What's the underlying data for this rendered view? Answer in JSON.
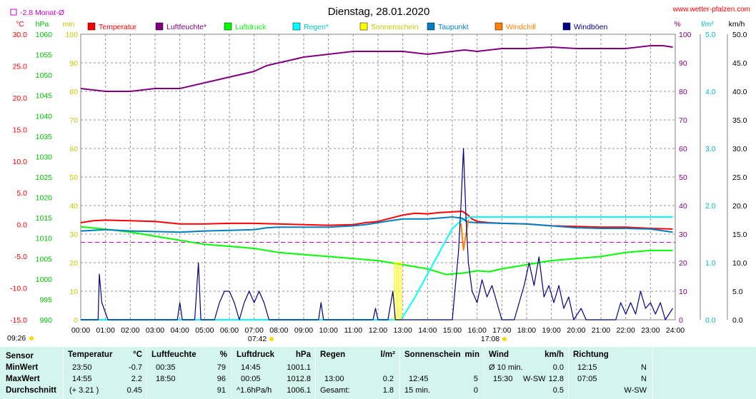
{
  "header": {
    "title": "Dienstag, 28.01.2020",
    "source": "www.wetter-pfalzen.com",
    "monat_label": "-2.8 Monat-Ø"
  },
  "axis_units": {
    "celsius": "°C",
    "hpa": "hPa",
    "min": "min",
    "percent": "%",
    "lm2": "l/m²",
    "kmh": "km/h"
  },
  "colors": {
    "temperatur": "#ff0000",
    "luftfeuchte": "#800080",
    "luftdruck": "#00ff00",
    "regen": "#00ffff",
    "sonnenschein": "#ffff00",
    "taupunkt": "#0080c0",
    "windchill": "#ff8000",
    "windboeen": "#000080",
    "monat": "#cc00cc",
    "summary_bg": "#d4f5ec"
  },
  "markers": {
    "sunrise": "07:42",
    "sunset": "17:08",
    "update": "09:26"
  },
  "chart_data": {
    "type": "line",
    "title": "Dienstag, 28.01.2020",
    "x_ticks": [
      "00:00",
      "01:00",
      "02:00",
      "03:00",
      "04:00",
      "05:00",
      "06:00",
      "07:00",
      "08:00",
      "09:00",
      "10:00",
      "11:00",
      "12:00",
      "13:00",
      "14:00",
      "15:00",
      "16:00",
      "17:00",
      "18:00",
      "19:00",
      "20:00",
      "21:00",
      "22:00",
      "23:00",
      "24:00"
    ],
    "x_range_hours": [
      0,
      24
    ],
    "grid": true,
    "legend_position": "top",
    "axes": {
      "temp_c": {
        "range": [
          -15,
          30
        ],
        "ticks": [
          "30.0",
          "25.0",
          "20.0",
          "15.0",
          "10.0",
          "5.0",
          "0.0",
          "-5.0",
          "-10.0",
          "-15.0"
        ]
      },
      "pressure_hpa": {
        "range": [
          990,
          1060
        ],
        "ticks": [
          "1060",
          "1055",
          "1050",
          "1045",
          "1040",
          "1035",
          "1030",
          "1025",
          "1020",
          "1015",
          "1010",
          "1005",
          "1000",
          "995",
          "990"
        ]
      },
      "sun_min": {
        "range": [
          0,
          100
        ],
        "ticks": [
          "100",
          "90",
          "80",
          "70",
          "60",
          "50",
          "40",
          "30",
          "20",
          "10",
          "0"
        ]
      },
      "humidity_pct": {
        "range": [
          0,
          100
        ],
        "ticks": [
          "100",
          "90",
          "80",
          "70",
          "60",
          "50",
          "40",
          "30",
          "20",
          "10",
          "0"
        ]
      },
      "rain_lm2": {
        "range": [
          0,
          5
        ],
        "ticks": [
          "5.0",
          "4.0",
          "3.0",
          "2.0",
          "1.0",
          "0.0"
        ]
      },
      "wind_kmh": {
        "range": [
          0,
          50
        ],
        "ticks": [
          "50.0",
          "45.0",
          "40.0",
          "35.0",
          "30.0",
          "25.0",
          "20.0",
          "15.0",
          "10.0",
          "5.0",
          "0.0"
        ]
      }
    },
    "monat_avg_c": -2.8,
    "series": [
      {
        "name": "Temperatur",
        "axis": "temp_c",
        "color": "#ff0000",
        "points": [
          [
            0,
            0.3
          ],
          [
            0.5,
            0.6
          ],
          [
            1,
            0.7
          ],
          [
            2,
            0.6
          ],
          [
            3,
            0.5
          ],
          [
            3.5,
            0.3
          ],
          [
            4,
            0.1
          ],
          [
            5,
            0.1
          ],
          [
            6,
            0.2
          ],
          [
            7,
            0.2
          ],
          [
            8,
            0.1
          ],
          [
            9,
            0.0
          ],
          [
            10,
            -0.1
          ],
          [
            11,
            0.0
          ],
          [
            11.5,
            0.3
          ],
          [
            12,
            0.5
          ],
          [
            12.5,
            1.0
          ],
          [
            13,
            1.5
          ],
          [
            13.5,
            1.8
          ],
          [
            14,
            1.7
          ],
          [
            14.5,
            1.9
          ],
          [
            15,
            2.0
          ],
          [
            15.4,
            2.1
          ],
          [
            15.6,
            1.6
          ],
          [
            15.8,
            0.9
          ],
          [
            16,
            0.5
          ],
          [
            16.5,
            0.3
          ],
          [
            17,
            0.2
          ],
          [
            18,
            0.1
          ],
          [
            19,
            -0.2
          ],
          [
            20,
            -0.3
          ],
          [
            21,
            -0.4
          ],
          [
            22,
            -0.4
          ],
          [
            23,
            -0.6
          ],
          [
            23.9,
            -0.7
          ]
        ]
      },
      {
        "name": "Luftfeuchte*",
        "axis": "humidity_pct",
        "color": "#800080",
        "points": [
          [
            0,
            81
          ],
          [
            0.5,
            80.5
          ],
          [
            1,
            80
          ],
          [
            2,
            80
          ],
          [
            2.5,
            80.5
          ],
          [
            3,
            81
          ],
          [
            4,
            81
          ],
          [
            5,
            83
          ],
          [
            5.5,
            84
          ],
          [
            6,
            85
          ],
          [
            7,
            87
          ],
          [
            7.5,
            89
          ],
          [
            8,
            90
          ],
          [
            9,
            92
          ],
          [
            10,
            93
          ],
          [
            11,
            94
          ],
          [
            12,
            94
          ],
          [
            13,
            94
          ],
          [
            14,
            93
          ],
          [
            15,
            94
          ],
          [
            15.5,
            94.5
          ],
          [
            16,
            94
          ],
          [
            17,
            95
          ],
          [
            18,
            95
          ],
          [
            19,
            95.5
          ],
          [
            20,
            95
          ],
          [
            21,
            95
          ],
          [
            22,
            95
          ],
          [
            23,
            96
          ],
          [
            23.5,
            96
          ],
          [
            23.9,
            95.5
          ]
        ]
      },
      {
        "name": "Luftdruck",
        "axis": "pressure_hpa",
        "color": "#00ff00",
        "points": [
          [
            0,
            1012.8
          ],
          [
            1,
            1012.2
          ],
          [
            2,
            1011.5
          ],
          [
            3,
            1010.5
          ],
          [
            4,
            1009.5
          ],
          [
            5,
            1008.5
          ],
          [
            6,
            1008
          ],
          [
            7,
            1007.5
          ],
          [
            8,
            1006.5
          ],
          [
            9,
            1006
          ],
          [
            10,
            1005.5
          ],
          [
            11,
            1005
          ],
          [
            12,
            1004.5
          ],
          [
            13,
            1003.5
          ],
          [
            14,
            1002.5
          ],
          [
            14.75,
            1001.1
          ],
          [
            15.5,
            1001.5
          ],
          [
            16,
            1002
          ],
          [
            16.5,
            1001.8
          ],
          [
            17,
            1002.5
          ],
          [
            18,
            1003.5
          ],
          [
            19,
            1004.5
          ],
          [
            20,
            1005
          ],
          [
            21,
            1005.5
          ],
          [
            22,
            1006.5
          ],
          [
            23,
            1007
          ],
          [
            23.9,
            1007
          ]
        ]
      },
      {
        "name": "Regen*",
        "axis": "rain_lm2",
        "color": "#00ffff",
        "points": [
          [
            0,
            0
          ],
          [
            12.9,
            0
          ],
          [
            13,
            0.05
          ],
          [
            13.5,
            0.4
          ],
          [
            14,
            0.8
          ],
          [
            14.5,
            1.2
          ],
          [
            15,
            1.6
          ],
          [
            15.4,
            1.75
          ],
          [
            15.7,
            1.8
          ],
          [
            16,
            1.8
          ],
          [
            23.9,
            1.8
          ]
        ]
      },
      {
        "name": "Sonnenschein",
        "axis": "sun_min",
        "color": "#ffff00",
        "points": [
          [
            12.75,
            5
          ],
          [
            12.85,
            5
          ]
        ]
      },
      {
        "name": "Taupunkt",
        "axis": "temp_c",
        "color": "#0080c0",
        "points": [
          [
            0,
            -1.0
          ],
          [
            1,
            -0.8
          ],
          [
            2,
            -1.0
          ],
          [
            3,
            -1.1
          ],
          [
            4,
            -1.2
          ],
          [
            5,
            -1.0
          ],
          [
            6,
            -0.9
          ],
          [
            7,
            -0.8
          ],
          [
            7.5,
            -0.5
          ],
          [
            8,
            -0.4
          ],
          [
            9,
            -0.4
          ],
          [
            10,
            -0.4
          ],
          [
            11,
            -0.2
          ],
          [
            11.5,
            0.0
          ],
          [
            12,
            0.3
          ],
          [
            12.5,
            0.6
          ],
          [
            13,
            0.9
          ],
          [
            14,
            0.9
          ],
          [
            15,
            1.2
          ],
          [
            15.4,
            1.0
          ],
          [
            15.6,
            0.4
          ],
          [
            16,
            0.3
          ],
          [
            17,
            0.2
          ],
          [
            18,
            0.1
          ],
          [
            19,
            -0.2
          ],
          [
            20,
            -0.5
          ],
          [
            21,
            -0.6
          ],
          [
            22,
            -0.6
          ],
          [
            23,
            -0.7
          ],
          [
            23.9,
            -1.2
          ]
        ]
      },
      {
        "name": "Windchill",
        "axis": "temp_c",
        "color": "#ff8000",
        "points": [
          [
            15.35,
            0.2
          ],
          [
            15.45,
            -4.0
          ],
          [
            15.55,
            -1.5
          ],
          [
            15.65,
            0.8
          ]
        ]
      },
      {
        "name": "Windböen",
        "axis": "wind_kmh",
        "color": "#000080",
        "points": [
          [
            0,
            0
          ],
          [
            0.7,
            0
          ],
          [
            0.75,
            8
          ],
          [
            0.85,
            3
          ],
          [
            1.1,
            0
          ],
          [
            3.9,
            0
          ],
          [
            4,
            3
          ],
          [
            4.1,
            0
          ],
          [
            4.6,
            0
          ],
          [
            4.75,
            10
          ],
          [
            4.85,
            0
          ],
          [
            5.4,
            0
          ],
          [
            5.6,
            3
          ],
          [
            5.8,
            5
          ],
          [
            6,
            5
          ],
          [
            6.2,
            3
          ],
          [
            6.4,
            0
          ],
          [
            6.6,
            3
          ],
          [
            6.8,
            5
          ],
          [
            7.0,
            3
          ],
          [
            7.2,
            5
          ],
          [
            7.4,
            3
          ],
          [
            7.6,
            0
          ],
          [
            9.6,
            0
          ],
          [
            9.7,
            3
          ],
          [
            9.8,
            0
          ],
          [
            11.8,
            0
          ],
          [
            11.9,
            2
          ],
          [
            12.0,
            0
          ],
          [
            12.4,
            0
          ],
          [
            12.6,
            5
          ],
          [
            12.7,
            0
          ],
          [
            15,
            0
          ],
          [
            15.25,
            12
          ],
          [
            15.35,
            20
          ],
          [
            15.45,
            30
          ],
          [
            15.55,
            18
          ],
          [
            15.65,
            10
          ],
          [
            15.8,
            5
          ],
          [
            16,
            3
          ],
          [
            16.2,
            7
          ],
          [
            16.4,
            4
          ],
          [
            16.6,
            6
          ],
          [
            16.8,
            3
          ],
          [
            17,
            0
          ],
          [
            17.5,
            0
          ],
          [
            17.7,
            3
          ],
          [
            17.9,
            6
          ],
          [
            18.1,
            10
          ],
          [
            18.3,
            6
          ],
          [
            18.5,
            11
          ],
          [
            18.7,
            4
          ],
          [
            18.9,
            6
          ],
          [
            19.1,
            3
          ],
          [
            19.3,
            6
          ],
          [
            19.5,
            2
          ],
          [
            19.7,
            4
          ],
          [
            19.9,
            0
          ],
          [
            20.2,
            2
          ],
          [
            20.4,
            0
          ],
          [
            21.6,
            0
          ],
          [
            21.8,
            3
          ],
          [
            22,
            1
          ],
          [
            22.2,
            3
          ],
          [
            22.4,
            1
          ],
          [
            22.6,
            5
          ],
          [
            22.8,
            2
          ],
          [
            23,
            3
          ],
          [
            23.2,
            1
          ],
          [
            23.4,
            3
          ],
          [
            23.6,
            0
          ],
          [
            23.9,
            2
          ]
        ]
      }
    ]
  },
  "legend": [
    {
      "label": "Temperatur",
      "color": "#ff0000"
    },
    {
      "label": "Luftfeuchte*",
      "color": "#800080"
    },
    {
      "label": "Luftdruck",
      "color": "#00ff00"
    },
    {
      "label": "Regen*",
      "color": "#00ffff"
    },
    {
      "label": "Sonnenschein",
      "color": "#ffff00"
    },
    {
      "label": "Taupunkt",
      "color": "#0080c0"
    },
    {
      "label": "Windchill",
      "color": "#ff8000"
    },
    {
      "label": "Windböen",
      "color": "#000080"
    }
  ],
  "summary": {
    "row_labels": {
      "sensor": "Sensor",
      "min": "MinWert",
      "max": "MaxWert",
      "avg": "Durchschnitt"
    },
    "temperatur": {
      "title": "Temperatur",
      "unit": "°C",
      "min_time": "23:50",
      "min_val": "-0.7",
      "max_time": "14:55",
      "max_val": "2.2",
      "avg_note": "(+ 3.21 )",
      "avg_val": "0.45"
    },
    "luftfeuchte": {
      "title": "Luftfeuchte",
      "unit": "%",
      "min_time": "00:35",
      "min_val": "79",
      "max_time": "18:50",
      "max_val": "96",
      "avg_val": "91"
    },
    "luftdruck": {
      "title": "Luftdruck",
      "unit": "hPa",
      "min_time": "14:45",
      "min_val": "1001.1",
      "max_time": "00:05",
      "max_val": "1012.8",
      "avg_note": "^1.6hPa/h",
      "avg_val": "1006.1"
    },
    "regen": {
      "title": "Regen",
      "unit": "l/m²",
      "max_time": "13:00",
      "max_val": "0.2",
      "avg_note": "Gesamt:",
      "avg_val": "1.8"
    },
    "sonnenschein": {
      "title": "Sonnenschein",
      "unit": "min",
      "max_time": "12:45",
      "max_val": "5",
      "avg_note": "15 min.",
      "avg_val": "0"
    },
    "wind": {
      "title": "Wind",
      "unit": "km/h",
      "min_time": "Ø 10 min.",
      "min_val": "0.0",
      "max_time": "15:30",
      "max_dir": "W-SW",
      "max_val": "12.8",
      "avg_val": "0.5"
    },
    "richtung": {
      "title": "Richtung",
      "min_time": "12:15",
      "min_val": "N",
      "max_time": "07:05",
      "max_val": "N",
      "avg_val": "W-SW"
    }
  }
}
